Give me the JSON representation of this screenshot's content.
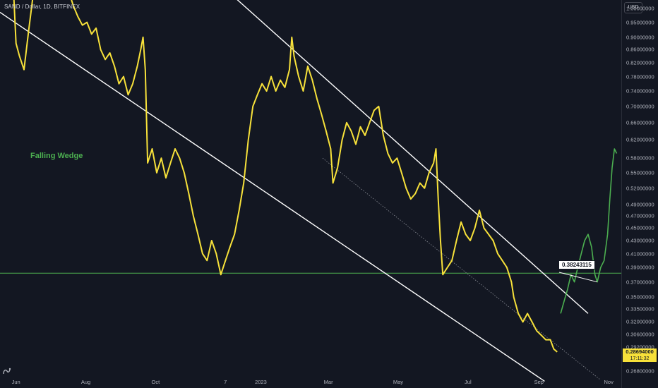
{
  "header": {
    "symbol": "SAND / Dollar, 1D, BITFINEX"
  },
  "currency_button": "USD",
  "y_axis": {
    "ticks": [
      "1.00000000",
      "0.95000000",
      "0.90000000",
      "0.86000000",
      "0.82000000",
      "0.78000000",
      "0.74000000",
      "0.70000000",
      "0.66000000",
      "0.62000000",
      "0.58000000",
      "0.55000000",
      "0.52000000",
      "0.49000000",
      "0.47000000",
      "0.45000000",
      "0.43000000",
      "0.41000000",
      "0.39000000",
      "0.37000000",
      "0.35000000",
      "0.33500000",
      "0.32000000",
      "0.30600000",
      "0.29200000",
      "0.26800000"
    ]
  },
  "x_axis": {
    "ticks": [
      "Jun",
      "Aug",
      "Oct",
      "7",
      "2023",
      "Mar",
      "May",
      "Jul",
      "Sep",
      "Nov"
    ]
  },
  "price_tag": {
    "value": "0.28694000",
    "timer": "17:11:32"
  },
  "annotations": {
    "pattern": "Falling Wedge",
    "target_price": "0.38243115"
  },
  "colors": {
    "background": "#131722",
    "price_line": "#f7e13a",
    "projection_line": "#4caf50",
    "trendlines": "#ffffff",
    "support_line": "#4caf50",
    "axis_text": "#b2b5be"
  },
  "chart_data": {
    "type": "line",
    "title": "SAND / Dollar, 1D, BITFINEX",
    "scale": "log",
    "ylim": [
      0.265,
      1.03
    ],
    "xlim": [
      "2022-05-18",
      "2023-11-12"
    ],
    "series": [
      {
        "style": "price",
        "points": [
          [
            "2022-05-30",
            1.05
          ],
          [
            "2022-06-01",
            0.88
          ],
          [
            "2022-06-04",
            0.84
          ],
          [
            "2022-06-08",
            0.8
          ],
          [
            "2022-06-12",
            0.92
          ],
          [
            "2022-06-16",
            1.05
          ],
          [
            "2022-07-18",
            1.05
          ],
          [
            "2022-07-21",
            1.01
          ],
          [
            "2022-07-25",
            0.97
          ],
          [
            "2022-07-29",
            0.94
          ],
          [
            "2022-08-02",
            0.95
          ],
          [
            "2022-08-06",
            0.91
          ],
          [
            "2022-08-10",
            0.93
          ],
          [
            "2022-08-14",
            0.86
          ],
          [
            "2022-08-18",
            0.83
          ],
          [
            "2022-08-22",
            0.85
          ],
          [
            "2022-08-26",
            0.81
          ],
          [
            "2022-08-30",
            0.76
          ],
          [
            "2022-09-03",
            0.78
          ],
          [
            "2022-09-07",
            0.73
          ],
          [
            "2022-09-11",
            0.76
          ],
          [
            "2022-09-15",
            0.81
          ],
          [
            "2022-09-18",
            0.86
          ],
          [
            "2022-09-20",
            0.9
          ],
          [
            "2022-09-22",
            0.8
          ],
          [
            "2022-09-24",
            0.57
          ],
          [
            "2022-09-28",
            0.6
          ],
          [
            "2022-10-02",
            0.55
          ],
          [
            "2022-10-06",
            0.58
          ],
          [
            "2022-10-10",
            0.54
          ],
          [
            "2022-10-14",
            0.57
          ],
          [
            "2022-10-18",
            0.6
          ],
          [
            "2022-10-22",
            0.58
          ],
          [
            "2022-10-26",
            0.55
          ],
          [
            "2022-10-30",
            0.51
          ],
          [
            "2022-11-03",
            0.47
          ],
          [
            "2022-11-07",
            0.44
          ],
          [
            "2022-11-11",
            0.41
          ],
          [
            "2022-11-15",
            0.4
          ],
          [
            "2022-11-19",
            0.43
          ],
          [
            "2022-11-23",
            0.41
          ],
          [
            "2022-11-27",
            0.38
          ],
          [
            "2022-12-01",
            0.4
          ],
          [
            "2022-12-05",
            0.42
          ],
          [
            "2022-12-09",
            0.44
          ],
          [
            "2022-12-13",
            0.48
          ],
          [
            "2022-12-17",
            0.53
          ],
          [
            "2022-12-21",
            0.62
          ],
          [
            "2022-12-25",
            0.7
          ],
          [
            "2022-12-29",
            0.73
          ],
          [
            "2023-01-02",
            0.76
          ],
          [
            "2023-01-06",
            0.74
          ],
          [
            "2023-01-10",
            0.78
          ],
          [
            "2023-01-14",
            0.74
          ],
          [
            "2023-01-18",
            0.77
          ],
          [
            "2023-01-22",
            0.75
          ],
          [
            "2023-01-26",
            0.8
          ],
          [
            "2023-01-28",
            0.9
          ],
          [
            "2023-01-30",
            0.84
          ],
          [
            "2023-02-03",
            0.78
          ],
          [
            "2023-02-07",
            0.74
          ],
          [
            "2023-02-11",
            0.81
          ],
          [
            "2023-02-15",
            0.77
          ],
          [
            "2023-02-19",
            0.72
          ],
          [
            "2023-02-23",
            0.68
          ],
          [
            "2023-02-27",
            0.64
          ],
          [
            "2023-03-03",
            0.6
          ],
          [
            "2023-03-05",
            0.53
          ],
          [
            "2023-03-09",
            0.56
          ],
          [
            "2023-03-13",
            0.62
          ],
          [
            "2023-03-17",
            0.66
          ],
          [
            "2023-03-21",
            0.64
          ],
          [
            "2023-03-25",
            0.61
          ],
          [
            "2023-03-29",
            0.65
          ],
          [
            "2023-04-02",
            0.63
          ],
          [
            "2023-04-06",
            0.66
          ],
          [
            "2023-04-10",
            0.69
          ],
          [
            "2023-04-14",
            0.7
          ],
          [
            "2023-04-18",
            0.63
          ],
          [
            "2023-04-22",
            0.59
          ],
          [
            "2023-04-26",
            0.57
          ],
          [
            "2023-04-30",
            0.58
          ],
          [
            "2023-05-04",
            0.55
          ],
          [
            "2023-05-08",
            0.52
          ],
          [
            "2023-05-12",
            0.5
          ],
          [
            "2023-05-16",
            0.51
          ],
          [
            "2023-05-20",
            0.53
          ],
          [
            "2023-05-24",
            0.52
          ],
          [
            "2023-05-28",
            0.55
          ],
          [
            "2023-06-01",
            0.57
          ],
          [
            "2023-06-03",
            0.6
          ],
          [
            "2023-06-05",
            0.5
          ],
          [
            "2023-06-07",
            0.43
          ],
          [
            "2023-06-09",
            0.38
          ],
          [
            "2023-06-13",
            0.39
          ],
          [
            "2023-06-17",
            0.4
          ],
          [
            "2023-06-21",
            0.43
          ],
          [
            "2023-06-25",
            0.46
          ],
          [
            "2023-06-29",
            0.44
          ],
          [
            "2023-07-03",
            0.43
          ],
          [
            "2023-07-07",
            0.45
          ],
          [
            "2023-07-11",
            0.48
          ],
          [
            "2023-07-15",
            0.45
          ],
          [
            "2023-07-19",
            0.44
          ],
          [
            "2023-07-23",
            0.43
          ],
          [
            "2023-07-27",
            0.41
          ],
          [
            "2023-07-31",
            0.4
          ],
          [
            "2023-08-04",
            0.39
          ],
          [
            "2023-08-08",
            0.37
          ],
          [
            "2023-08-10",
            0.35
          ],
          [
            "2023-08-14",
            0.33
          ],
          [
            "2023-08-18",
            0.32
          ],
          [
            "2023-08-22",
            0.33
          ],
          [
            "2023-08-26",
            0.32
          ],
          [
            "2023-08-30",
            0.31
          ],
          [
            "2023-09-03",
            0.305
          ],
          [
            "2023-09-07",
            0.3
          ],
          [
            "2023-09-11",
            0.3
          ],
          [
            "2023-09-14",
            0.29
          ],
          [
            "2023-09-17",
            0.287
          ]
        ]
      },
      {
        "style": "projection",
        "points": [
          [
            "2023-09-20",
            0.33
          ],
          [
            "2023-09-23",
            0.345
          ],
          [
            "2023-09-26",
            0.36
          ],
          [
            "2023-09-29",
            0.38
          ],
          [
            "2023-10-02",
            0.37
          ],
          [
            "2023-10-05",
            0.39
          ],
          [
            "2023-10-08",
            0.41
          ],
          [
            "2023-10-11",
            0.43
          ],
          [
            "2023-10-14",
            0.44
          ],
          [
            "2023-10-17",
            0.42
          ],
          [
            "2023-10-20",
            0.38
          ],
          [
            "2023-10-22",
            0.37
          ],
          [
            "2023-10-25",
            0.39
          ],
          [
            "2023-10-28",
            0.4
          ],
          [
            "2023-10-31",
            0.44
          ],
          [
            "2023-11-02",
            0.5
          ],
          [
            "2023-11-04",
            0.56
          ],
          [
            "2023-11-06",
            0.6
          ],
          [
            "2023-11-08",
            0.59
          ]
        ]
      }
    ],
    "trendlines": [
      {
        "style": "solid",
        "from": [
          "2022-05-18",
          0.985
        ],
        "to": [
          "2023-09-06",
          0.258
        ]
      },
      {
        "style": "solid",
        "from": [
          "2022-10-10",
          1.3
        ],
        "to": [
          "2023-10-14",
          0.33
        ]
      },
      {
        "style": "dotted",
        "from": [
          "2023-02-24",
          0.58
        ],
        "to": [
          "2023-10-24",
          0.26
        ]
      }
    ],
    "horizontal_lines": [
      {
        "value": 0.382,
        "style": "support"
      }
    ]
  }
}
